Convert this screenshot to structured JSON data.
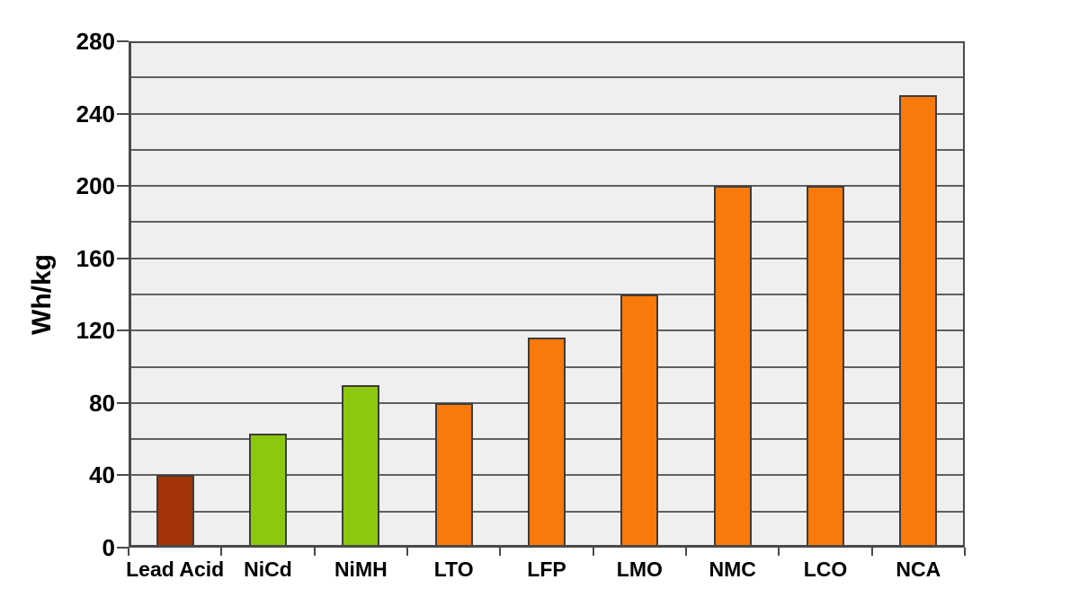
{
  "chart_data": {
    "type": "bar",
    "title": "",
    "xlabel": "",
    "ylabel": "Wh/kg",
    "ylim": [
      0,
      280
    ],
    "y_major_step": 40,
    "y_minor_step": 20,
    "grid": "horizontal",
    "legend": "none",
    "categories": [
      "Lead Acid",
      "NiCd",
      "NiMH",
      "LTO",
      "LFP",
      "LMO",
      "NMC",
      "LCO",
      "NCA"
    ],
    "values": [
      40,
      63,
      90,
      80,
      116,
      140,
      200,
      200,
      250
    ],
    "bar_colors": [
      "#A23408",
      "#8CC80E",
      "#8CC80E",
      "#FA790B",
      "#FA790B",
      "#FA790B",
      "#FA790B",
      "#FA790B",
      "#FA790B"
    ],
    "y_tick_labels": [
      "0",
      "40",
      "80",
      "120",
      "160",
      "200",
      "240",
      "280"
    ]
  },
  "style": {
    "page_bg": "#FFFFFF",
    "plot_bg": "#EFEFEF",
    "grid_color": "#5F5F5F",
    "axis_color": "#4A4A4A",
    "bar_border": "#3C3C3C",
    "text_color": "#000000"
  }
}
